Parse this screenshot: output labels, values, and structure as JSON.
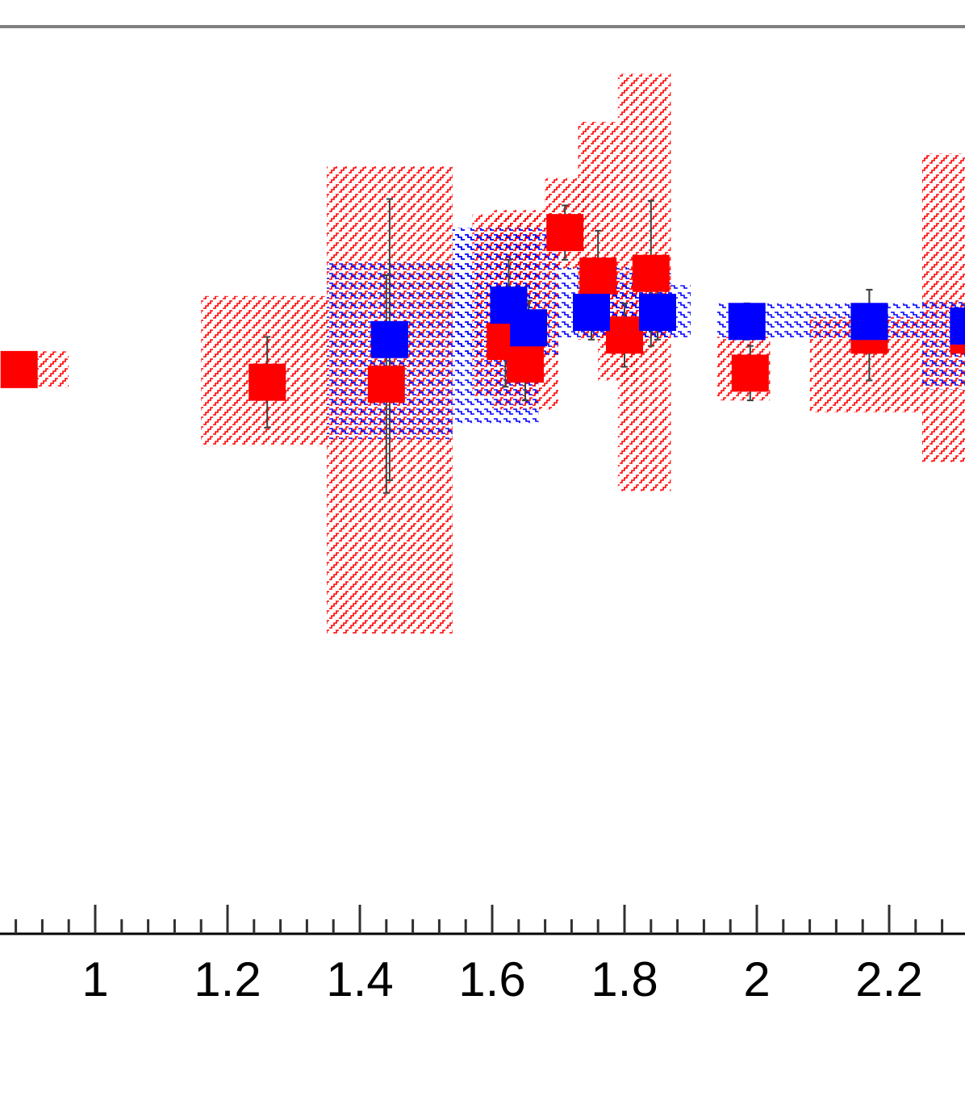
{
  "chart_data": {
    "type": "scatter",
    "x_ticks": [
      "1",
      "1.2",
      "1.4",
      "1.6",
      "1.8",
      "2",
      "2.2"
    ],
    "x_tick_values": [
      1.0,
      1.2,
      1.4,
      1.6,
      1.8,
      2.0,
      2.2
    ],
    "xlim": [
      0.86,
      2.32
    ],
    "ylim": [
      0,
      1
    ],
    "grid": false,
    "colors": {
      "red": "#ff0000",
      "blue": "#0000ff",
      "axis": "#000000",
      "frame": "#808080"
    },
    "series": [
      {
        "color": "red",
        "points": [
          {
            "x": 0.885,
            "y": 0.622,
            "xlo": 0.86,
            "xhi": 0.96,
            "elo": 0,
            "ehi": 0,
            "slo": 0.02,
            "shi": 0.02
          },
          {
            "x": 1.26,
            "y": 0.608,
            "xlo": 1.16,
            "xhi": 1.35,
            "elo": 0.05,
            "ehi": 0.05,
            "slo": 0.07,
            "shi": 0.095
          },
          {
            "x": 1.44,
            "y": 0.606,
            "xlo": 1.35,
            "xhi": 1.54,
            "elo": 0.12,
            "ehi": 0.12,
            "slo": 0.275,
            "shi": 0.24
          },
          {
            "x": 1.62,
            "y": 0.653,
            "xlo": 1.57,
            "xhi": 1.67,
            "elo": 0.05,
            "ehi": 0.05,
            "slo": 0.06,
            "shi": 0.14
          },
          {
            "x": 1.65,
            "y": 0.628,
            "xlo": 1.6,
            "xhi": 1.7,
            "elo": 0.04,
            "ehi": 0.04,
            "slo": 0.05,
            "shi": 0.17
          },
          {
            "x": 1.71,
            "y": 0.773,
            "xlo": 1.68,
            "xhi": 1.74,
            "elo": 0.03,
            "ehi": 0.03,
            "slo": 0.04,
            "shi": 0.06
          },
          {
            "x": 1.76,
            "y": 0.725,
            "xlo": 1.73,
            "xhi": 1.79,
            "elo": 0.05,
            "ehi": 0.05,
            "slo": 0.07,
            "shi": 0.17
          },
          {
            "x": 1.8,
            "y": 0.66,
            "xlo": 1.76,
            "xhi": 1.82,
            "elo": 0.035,
            "ehi": 0.035,
            "slo": 0.05,
            "shi": 0.06
          },
          {
            "x": 1.84,
            "y": 0.728,
            "xlo": 1.79,
            "xhi": 1.87,
            "elo": 0.08,
            "ehi": 0.08,
            "slo": 0.24,
            "shi": 0.22
          },
          {
            "x": 1.99,
            "y": 0.618,
            "xlo": 1.94,
            "xhi": 2.02,
            "elo": 0.03,
            "ehi": 0.03,
            "slo": 0.03,
            "shi": 0.04
          },
          {
            "x": 2.17,
            "y": 0.66,
            "xlo": 2.08,
            "xhi": 2.25,
            "elo": 0.05,
            "ehi": 0.05,
            "slo": 0.085,
            "shi": 0.02
          },
          {
            "x": 2.32,
            "y": 0.66,
            "xlo": 2.25,
            "xhi": 2.32,
            "elo": 0,
            "ehi": 0,
            "slo": 0.14,
            "shi": 0.2
          }
        ]
      },
      {
        "color": "blue",
        "points": [
          {
            "x": 1.445,
            "y": 0.655,
            "xlo": 1.35,
            "xhi": 1.54,
            "elo": 0.155,
            "ehi": 0.155,
            "slo": 0.11,
            "shi": 0.085
          },
          {
            "x": 1.625,
            "y": 0.693,
            "xlo": 1.54,
            "xhi": 1.67,
            "elo": 0.05,
            "ehi": 0.05,
            "slo": 0.13,
            "shi": 0.085
          },
          {
            "x": 1.655,
            "y": 0.668,
            "xlo": 1.54,
            "xhi": 1.7,
            "elo": 0.03,
            "ehi": 0.03,
            "slo": 0.03,
            "shi": 0.11
          },
          {
            "x": 1.75,
            "y": 0.685,
            "xlo": 1.7,
            "xhi": 1.87,
            "elo": 0.03,
            "ehi": 0.03,
            "slo": 0.03,
            "shi": 0.05
          },
          {
            "x": 1.85,
            "y": 0.685,
            "xlo": 1.78,
            "xhi": 1.9,
            "elo": 0.03,
            "ehi": 0.03,
            "slo": 0.03,
            "shi": 0.03
          },
          {
            "x": 1.985,
            "y": 0.675,
            "xlo": 1.94,
            "xhi": 2.08,
            "elo": 0.02,
            "ehi": 0.02,
            "slo": 0.02,
            "shi": 0.02
          },
          {
            "x": 2.17,
            "y": 0.675,
            "xlo": 2.08,
            "xhi": 2.25,
            "elo": 0.035,
            "ehi": 0.035,
            "slo": 0.02,
            "shi": 0.02
          },
          {
            "x": 2.32,
            "y": 0.67,
            "xlo": 2.25,
            "xhi": 2.32,
            "elo": 0,
            "ehi": 0,
            "slo": 0.07,
            "shi": 0.03
          }
        ]
      }
    ]
  }
}
